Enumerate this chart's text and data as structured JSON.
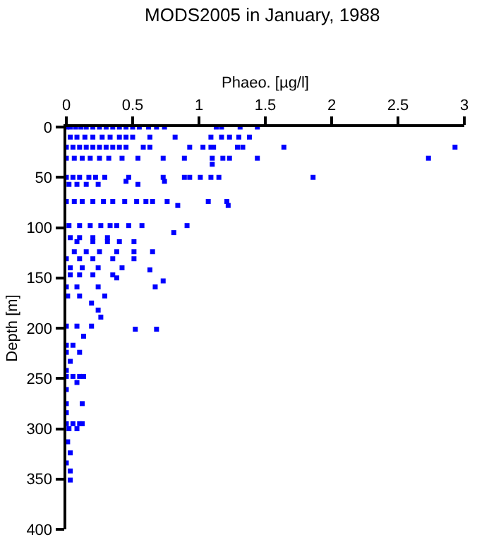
{
  "chart_data": {
    "type": "scatter",
    "title": "MODS2005 in January, 1988",
    "xlabel": "Phaeo. [µg/l]",
    "ylabel": "Depth [m]",
    "xlim": [
      0,
      3
    ],
    "xticks": [
      0,
      0.5,
      1,
      1.5,
      2,
      2.5,
      3
    ],
    "ylim": [
      400,
      0
    ],
    "yticks": [
      0,
      50,
      100,
      150,
      200,
      250,
      300,
      350,
      400
    ],
    "marker": "square",
    "series": [
      {
        "color": "#0000ff",
        "x": [
          0,
          0.03,
          0.07,
          0.11,
          0.15,
          0.2,
          0.25,
          0.3,
          0.35,
          0.4,
          0.45,
          0.5,
          0.55,
          0.62,
          0.68,
          0.74,
          1.13,
          1.17,
          1.31,
          1.44,
          0.03,
          0.08,
          0.14,
          0.2,
          0.27,
          0.33,
          0.4,
          0.45,
          0.5,
          0.63,
          0.82,
          1.09,
          1.17,
          1.23,
          1.3,
          1.38,
          0,
          0.05,
          0.1,
          0.15,
          0.2,
          0.25,
          0.3,
          0.35,
          0.4,
          0.45,
          0.58,
          0.63,
          0.93,
          1.03,
          1.09,
          1.11,
          1.29,
          1.33,
          1.64,
          2.93,
          0,
          0.06,
          0.12,
          0.18,
          0.25,
          0.32,
          0.42,
          0.54,
          0.73,
          0.89,
          1.1,
          1.18,
          1.23,
          1.44,
          2.73,
          1.1,
          0,
          0.05,
          0.1,
          0.17,
          0.22,
          0.29,
          0.47,
          0.73,
          0.89,
          0.93,
          1.01,
          1.09,
          1.15,
          1.86,
          0.45,
          0.74,
          0.02,
          0.08,
          0.15,
          0.24,
          0.54,
          0,
          0.06,
          0.12,
          0.2,
          0.28,
          0.35,
          0.44,
          0.53,
          0.6,
          0.65,
          0.76,
          1.07,
          1.21,
          0.84,
          1.22,
          0.02,
          0.1,
          0.18,
          0.26,
          0.33,
          0.38,
          0.47,
          0.57,
          0.91,
          0.81,
          0.03,
          0.1,
          0.2,
          0.31,
          0.08,
          0.2,
          0.31,
          0.4,
          0.51,
          0.06,
          0.15,
          0.25,
          0.38,
          0.51,
          0.65,
          0,
          0.1,
          0.2,
          0.35,
          0.51,
          0.03,
          0.12,
          0.24,
          0.42,
          0.63,
          0.03,
          0.1,
          0.2,
          0.35,
          0.38,
          0.73,
          0,
          0.08,
          0.24,
          0.67,
          0.01,
          0.1,
          0.29,
          0.19,
          0.24,
          0.26,
          0,
          0.08,
          0.19,
          0.52,
          0.68,
          0.13,
          0,
          0.05,
          0,
          0.1,
          0.03,
          0,
          0,
          0.05,
          0.1,
          0.13,
          0.08,
          0,
          0,
          0.12,
          0,
          0,
          0.05,
          0.1,
          0.12,
          0.02,
          0.08,
          0.01,
          0.03,
          0,
          0.03,
          0.03
        ],
        "values": [
          0,
          0,
          0,
          0,
          0,
          0,
          0,
          0,
          0,
          0,
          0,
          0,
          0,
          0,
          0,
          0,
          0,
          0,
          0,
          0,
          10,
          10,
          10,
          10,
          10,
          10,
          10,
          10,
          10,
          10,
          10,
          10,
          10,
          10,
          10,
          10,
          20,
          20,
          20,
          20,
          20,
          20,
          20,
          20,
          20,
          20,
          20,
          20,
          20,
          20,
          20,
          20,
          20,
          20,
          20,
          20,
          31,
          31,
          31,
          31,
          31,
          31,
          31,
          31,
          31,
          31,
          31,
          31,
          31,
          31,
          31,
          37,
          50,
          50,
          50,
          50,
          50,
          50,
          50,
          50,
          50,
          50,
          50,
          50,
          50,
          50,
          54,
          54,
          57,
          57,
          57,
          57,
          57,
          74,
          74,
          74,
          74,
          74,
          74,
          74,
          74,
          74,
          74,
          74,
          74,
          74,
          78,
          78,
          98,
          98,
          98,
          98,
          98,
          98,
          98,
          98,
          98,
          105,
          110,
          110,
          110,
          110,
          114,
          114,
          114,
          114,
          114,
          124,
          124,
          124,
          124,
          124,
          124,
          131,
          131,
          131,
          131,
          131,
          140,
          140,
          140,
          140,
          142,
          147,
          147,
          147,
          147,
          150,
          153,
          159,
          159,
          159,
          159,
          168,
          168,
          168,
          175,
          182,
          189,
          198,
          198,
          198,
          201,
          201,
          208,
          217,
          217,
          224,
          224,
          233,
          242,
          248,
          248,
          248,
          248,
          254,
          261,
          275,
          275,
          284,
          295,
          295,
          295,
          295,
          300,
          300,
          313,
          324,
          334,
          342,
          351
        ]
      }
    ]
  }
}
